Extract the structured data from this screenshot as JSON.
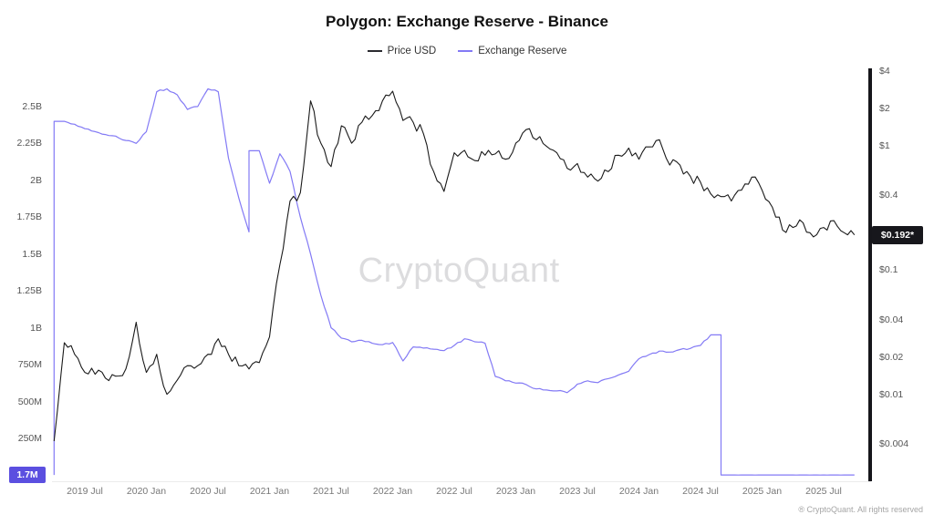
{
  "title": "Polygon: Exchange Reserve - Binance",
  "watermark": "CryptoQuant",
  "footer": "® CryptoQuant. All rights reserved",
  "legend": [
    {
      "label": "Price USD",
      "color": "#2b2b30"
    },
    {
      "label": "Exchange Reserve",
      "color": "#837af5"
    }
  ],
  "badges": {
    "reserve": {
      "text": "1.7M",
      "color": "#5b4fe0"
    },
    "price": {
      "text": "$0.192*",
      "color": "#17171c"
    }
  },
  "chart_data": {
    "type": "line",
    "title": "Polygon: Exchange Reserve - Binance",
    "x_start": "2019-04",
    "x_end": "2025-10",
    "x_step": "1 month",
    "x_ticks": {
      "labels": [
        "2019 Jul",
        "2020 Jan",
        "2020 Jul",
        "2021 Jan",
        "2021 Jul",
        "2022 Jan",
        "2022 Jul",
        "2023 Jan",
        "2023 Jul",
        "2024 Jan",
        "2024 Jul",
        "2025 Jan",
        "2025 Jul"
      ],
      "month_index": [
        3,
        9,
        15,
        21,
        27,
        33,
        39,
        45,
        51,
        57,
        63,
        69,
        75
      ]
    },
    "left_axis": {
      "label": "Exchange Reserve",
      "scale": "linear",
      "unit": "tokens",
      "tick_labels": [
        "2.5B",
        "2.25B",
        "2B",
        "1.75B",
        "1.5B",
        "1.25B",
        "1B",
        "750M",
        "500M",
        "250M"
      ],
      "tick_values_millions": [
        2500,
        2250,
        2000,
        1750,
        1500,
        1250,
        1000,
        750,
        500,
        250
      ],
      "range_millions": [
        0,
        2760
      ]
    },
    "right_axis": {
      "label": "Price USD",
      "scale": "log",
      "tick_labels": [
        "$4",
        "$2",
        "$1",
        "$0.4",
        "$0.1",
        "$0.04",
        "$0.02",
        "$0.01",
        "$0.004"
      ],
      "tick_values": [
        4,
        2,
        1,
        0.4,
        0.1,
        0.04,
        0.02,
        0.01,
        0.004
      ],
      "range": [
        0.002,
        4.5
      ]
    },
    "series": [
      {
        "name": "Price USD",
        "axis": "right",
        "color": "#1a1a1a",
        "values": [
          0.0042,
          0.026,
          0.021,
          0.015,
          0.0145,
          0.0135,
          0.014,
          0.016,
          0.038,
          0.015,
          0.021,
          0.01,
          0.013,
          0.017,
          0.017,
          0.021,
          0.028,
          0.021,
          0.017,
          0.016,
          0.018,
          0.029,
          0.11,
          0.36,
          0.42,
          2.3,
          1.05,
          0.68,
          1.45,
          1.05,
          1.55,
          1.75,
          2.3,
          2.75,
          1.6,
          1.55,
          1.25,
          0.62,
          0.43,
          0.88,
          0.92,
          0.76,
          0.84,
          0.86,
          0.78,
          1.05,
          1.35,
          1.12,
          0.99,
          0.88,
          0.66,
          0.72,
          0.56,
          0.52,
          0.62,
          0.84,
          0.96,
          0.78,
          0.98,
          1.12,
          0.7,
          0.7,
          0.57,
          0.51,
          0.41,
          0.39,
          0.36,
          0.44,
          0.56,
          0.44,
          0.32,
          0.21,
          0.22,
          0.24,
          0.185,
          0.22,
          0.25,
          0.2,
          0.192
        ]
      },
      {
        "name": "Exchange Reserve",
        "axis": "left",
        "unit": "millions",
        "color": "#837af5",
        "values": [
          2,
          2400,
          2380,
          2350,
          2330,
          2310,
          2300,
          2270,
          2250,
          2330,
          2600,
          2620,
          2580,
          2480,
          2500,
          2620,
          2600,
          2150,
          1880,
          1650,
          2200,
          1980,
          2180,
          2060,
          1750,
          1500,
          1220,
          1000,
          930,
          905,
          915,
          895,
          885,
          900,
          775,
          870,
          862,
          855,
          845,
          880,
          925,
          905,
          895,
          670,
          640,
          625,
          615,
          585,
          578,
          572,
          560,
          618,
          640,
          628,
          655,
          680,
          705,
          790,
          818,
          842,
          835,
          852,
          860,
          880,
          952,
          1.7,
          1.7,
          1.8,
          1.6,
          1.7,
          1.7,
          1.8,
          1.6,
          1.7,
          1.7,
          1.8,
          1.7,
          1.6,
          1.7
        ]
      }
    ],
    "current_values": {
      "exchange_reserve": "1.7M",
      "price_usd": "$0.192"
    },
    "legend_position": "top-center",
    "grid": false
  }
}
